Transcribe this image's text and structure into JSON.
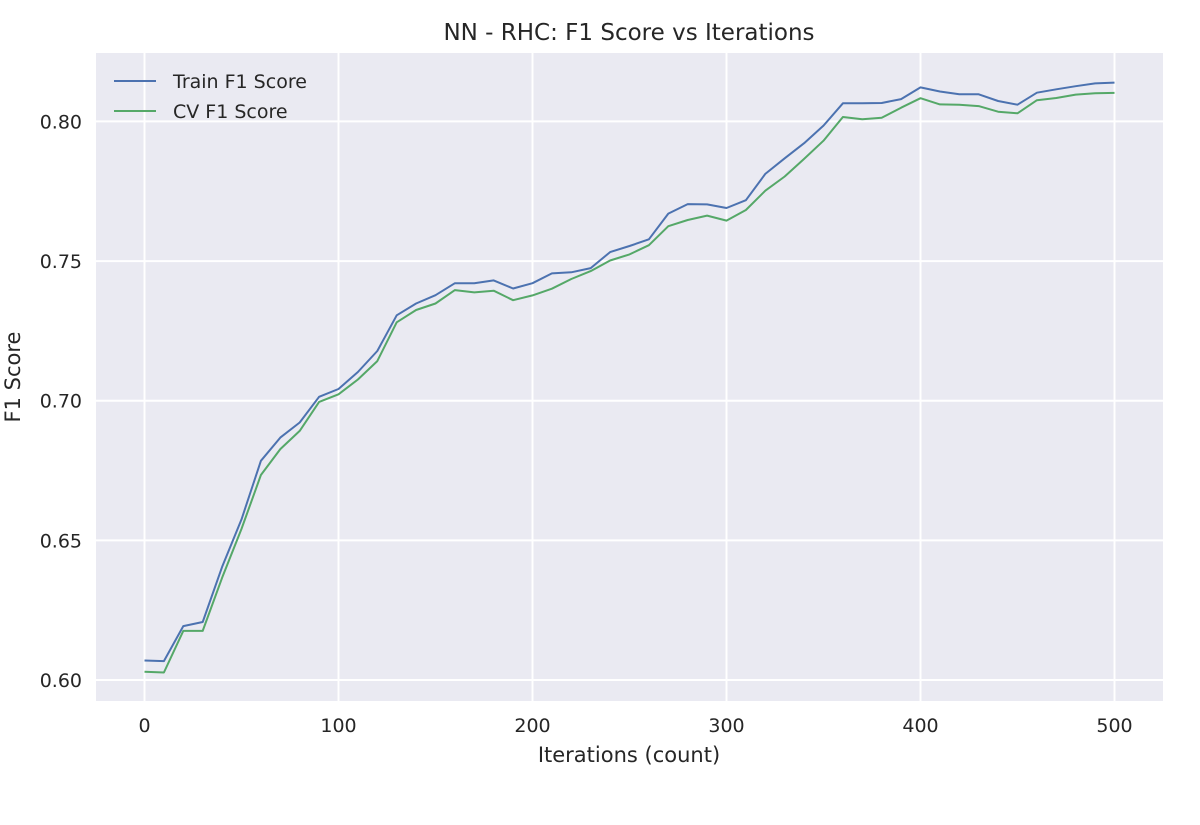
{
  "chart_data": {
    "type": "line",
    "title": "NN - RHC: F1 Score vs Iterations",
    "xlabel": "Iterations (count)",
    "ylabel": "F1 Score",
    "xlim": [
      -25,
      525
    ],
    "ylim": [
      0.5925,
      0.8245
    ],
    "xticks": [
      0,
      100,
      200,
      300,
      400,
      500
    ],
    "yticks": [
      0.6,
      0.65,
      0.7,
      0.75,
      0.8
    ],
    "ytick_labels": [
      "0.60",
      "0.65",
      "0.70",
      "0.75",
      "0.80"
    ],
    "grid": true,
    "legend_position": "top-left",
    "background": "#eaeaf2",
    "x": [
      0,
      10,
      20,
      30,
      40,
      50,
      60,
      70,
      80,
      90,
      100,
      110,
      120,
      130,
      140,
      150,
      160,
      170,
      180,
      190,
      200,
      210,
      220,
      230,
      240,
      250,
      260,
      270,
      280,
      290,
      300,
      310,
      320,
      330,
      340,
      350,
      360,
      370,
      380,
      390,
      400,
      410,
      420,
      430,
      440,
      450,
      460,
      470,
      480,
      490,
      500
    ],
    "series": [
      {
        "name": "Train F1 Score",
        "color": "#4c72b0",
        "values": [
          0.607,
          0.6068,
          0.6193,
          0.6208,
          0.6405,
          0.6575,
          0.6785,
          0.6868,
          0.6922,
          0.7014,
          0.7042,
          0.7103,
          0.7178,
          0.7306,
          0.7348,
          0.7378,
          0.7421,
          0.7421,
          0.7431,
          0.7402,
          0.7421,
          0.7456,
          0.746,
          0.7475,
          0.7532,
          0.7554,
          0.7578,
          0.767,
          0.7704,
          0.7703,
          0.769,
          0.7718,
          0.7812,
          0.7868,
          0.7922,
          0.7985,
          0.8065,
          0.8065,
          0.8066,
          0.808,
          0.8122,
          0.8107,
          0.8097,
          0.8097,
          0.8073,
          0.806,
          0.8103,
          0.8115,
          0.8126,
          0.8136,
          0.8139
        ]
      },
      {
        "name": "CV F1 Score",
        "color": "#55a868",
        "values": [
          0.603,
          0.6027,
          0.6176,
          0.6176,
          0.6366,
          0.6541,
          0.6734,
          0.6827,
          0.6892,
          0.6996,
          0.7023,
          0.7076,
          0.7142,
          0.7281,
          0.7325,
          0.7348,
          0.7396,
          0.7388,
          0.7394,
          0.736,
          0.7377,
          0.7401,
          0.7436,
          0.7464,
          0.7502,
          0.7524,
          0.7557,
          0.7625,
          0.7647,
          0.7663,
          0.7645,
          0.7683,
          0.7752,
          0.7803,
          0.7866,
          0.7931,
          0.8016,
          0.8008,
          0.8013,
          0.8049,
          0.8083,
          0.8061,
          0.806,
          0.8055,
          0.8035,
          0.8029,
          0.8076,
          0.8084,
          0.8096,
          0.8101,
          0.8102
        ]
      }
    ]
  }
}
